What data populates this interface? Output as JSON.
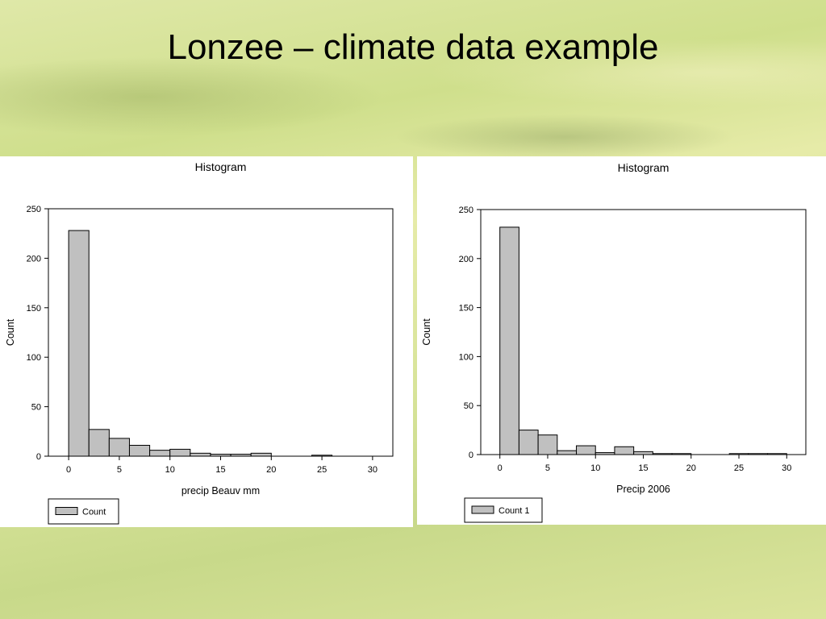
{
  "slide": {
    "title": "Lonzee – climate data example"
  },
  "chart_data": [
    {
      "type": "bar",
      "title": "Histogram",
      "xlabel": "precip Beauv mm",
      "ylabel": "Count",
      "xlim": [
        -2,
        32
      ],
      "ylim": [
        0,
        250
      ],
      "x_ticks": [
        0,
        5,
        10,
        15,
        20,
        25,
        30
      ],
      "y_ticks": [
        0,
        50,
        100,
        150,
        200,
        250
      ],
      "bin_width": 2,
      "bins_start": [
        0,
        2,
        4,
        6,
        8,
        10,
        12,
        14,
        16,
        18,
        20,
        22,
        24,
        26,
        28
      ],
      "series": [
        {
          "name": "Count",
          "values": [
            228,
            27,
            18,
            11,
            6,
            7,
            3,
            2,
            2,
            3,
            0,
            0,
            1,
            0,
            0
          ]
        }
      ],
      "legend": "bottom-left",
      "bar_color": "#c0c0c0"
    },
    {
      "type": "bar",
      "title": "Histogram",
      "xlabel": "Precip 2006",
      "ylabel": "Count",
      "xlim": [
        -2,
        32
      ],
      "ylim": [
        0,
        250
      ],
      "x_ticks": [
        0,
        5,
        10,
        15,
        20,
        25,
        30
      ],
      "y_ticks": [
        0,
        50,
        100,
        150,
        200,
        250
      ],
      "bin_width": 2,
      "bins_start": [
        0,
        2,
        4,
        6,
        8,
        10,
        12,
        14,
        16,
        18,
        20,
        22,
        24,
        26,
        28
      ],
      "series": [
        {
          "name": "Count 1",
          "values": [
            232,
            25,
            20,
            4,
            9,
            2,
            8,
            3,
            1,
            1,
            0,
            0,
            1,
            1,
            1
          ]
        }
      ],
      "legend": "bottom-left",
      "bar_color": "#c0c0c0"
    }
  ]
}
